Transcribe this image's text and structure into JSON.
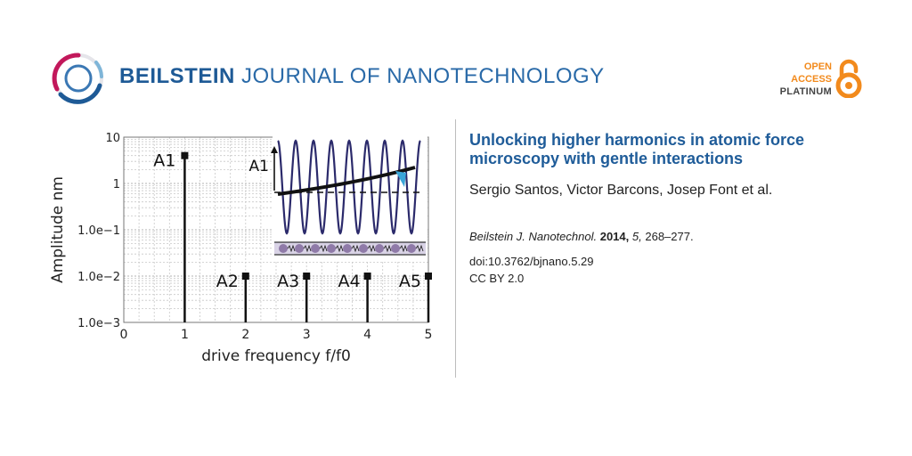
{
  "header": {
    "journal_bold": "BEILSTEIN",
    "journal_rest": " JOURNAL OF NANOTECHNOLOGY",
    "oa_line1": "OPEN",
    "oa_line2": "ACCESS",
    "oa_line3": "PLATINUM",
    "logo_icon": "beilstein-ring-logo",
    "oa_icon": "open-access-lock-icon"
  },
  "article": {
    "title": "Unlocking higher harmonics in atomic force microscopy with gentle interactions",
    "authors": "Sergio Santos, Victor Barcons, Josep Font et al.",
    "journal_abbrev": "Beilstein J. Nanotechnol.",
    "year": "2014,",
    "volume": "5,",
    "pages": "268–277.",
    "doi": "doi:10.3762/bjnano.5.29",
    "license": "CC BY 2.0"
  },
  "colors": {
    "accent_blue": "#1f5c99",
    "oa_orange": "#f28a1c",
    "wave_navy": "#2b2a6b",
    "tip_cyan": "#3aa6d8"
  },
  "chart_data": {
    "type": "bar",
    "scale_y": "log",
    "xlabel": "drive frequency f/f0",
    "ylabel": "Amplitude nm",
    "xlim": [
      0,
      5
    ],
    "ylim": [
      0.001,
      10
    ],
    "xticks": [
      "0",
      "1",
      "2",
      "3",
      "4",
      "5"
    ],
    "yticks": [
      "10",
      "1",
      "1.0e−1",
      "1.0e−2",
      "1.0e−3"
    ],
    "grid": true,
    "points": [
      {
        "label": "A1",
        "x": 1,
        "y": 4
      },
      {
        "label": "A2",
        "x": 2,
        "y": 0.01
      },
      {
        "label": "A3",
        "x": 3,
        "y": 0.01
      },
      {
        "label": "A4",
        "x": 4,
        "y": 0.01
      },
      {
        "label": "A5",
        "x": 5,
        "y": 0.01
      }
    ],
    "inset": {
      "label": "A1",
      "periods": 8
    }
  }
}
